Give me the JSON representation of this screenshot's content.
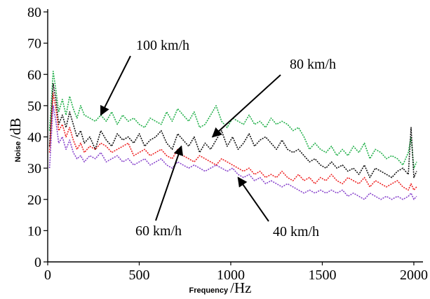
{
  "chart_data": {
    "type": "line",
    "title": "",
    "xlabel_small": "Frequency",
    "xlabel_unit": "/Hz",
    "ylabel_small": "Noise",
    "ylabel_unit": "/dB",
    "xlim": [
      0,
      2050
    ],
    "ylim": [
      0,
      80
    ],
    "xticks": [
      0,
      500,
      1000,
      1500,
      2000
    ],
    "yticks": [
      0,
      10,
      20,
      30,
      40,
      50,
      60,
      70,
      80
    ],
    "grid": false,
    "series": [
      {
        "name": "100 km/h",
        "color": "#22b04a",
        "x": [
          10,
          30,
          45,
          60,
          80,
          100,
          120,
          140,
          160,
          180,
          200,
          230,
          260,
          290,
          320,
          350,
          380,
          410,
          440,
          470,
          500,
          530,
          560,
          590,
          620,
          650,
          680,
          710,
          740,
          770,
          800,
          830,
          860,
          890,
          920,
          950,
          980,
          1010,
          1040,
          1070,
          1100,
          1130,
          1160,
          1190,
          1220,
          1250,
          1280,
          1310,
          1340,
          1370,
          1400,
          1430,
          1460,
          1490,
          1520,
          1550,
          1580,
          1610,
          1640,
          1670,
          1700,
          1730,
          1760,
          1790,
          1820,
          1850,
          1880,
          1910,
          1940,
          1970,
          1985,
          2000,
          2015
        ],
        "y": [
          42,
          61,
          55,
          48,
          52,
          47,
          53,
          49,
          46,
          50,
          47,
          46,
          45,
          47,
          45,
          48,
          44,
          47,
          45,
          46,
          44,
          43,
          46,
          45,
          44,
          48,
          45,
          49,
          47,
          45,
          48,
          43,
          44,
          47,
          50,
          45,
          43,
          46,
          45,
          44,
          47,
          44,
          45,
          43,
          46,
          44,
          45,
          44,
          42,
          43,
          40,
          36,
          38,
          36,
          35,
          37,
          34,
          36,
          34,
          37,
          35,
          38,
          33,
          36,
          35,
          33,
          34,
          33,
          31,
          35,
          40,
          30,
          32
        ]
      },
      {
        "name": "80 km/h",
        "color": "#111111",
        "x": [
          10,
          30,
          45,
          60,
          80,
          100,
          120,
          140,
          160,
          180,
          200,
          230,
          260,
          290,
          320,
          350,
          380,
          410,
          440,
          470,
          500,
          530,
          560,
          590,
          620,
          650,
          680,
          710,
          740,
          770,
          800,
          830,
          860,
          890,
          920,
          950,
          980,
          1010,
          1040,
          1070,
          1100,
          1130,
          1160,
          1190,
          1220,
          1250,
          1280,
          1310,
          1340,
          1370,
          1400,
          1430,
          1460,
          1490,
          1520,
          1550,
          1580,
          1610,
          1640,
          1670,
          1700,
          1730,
          1760,
          1790,
          1820,
          1850,
          1880,
          1910,
          1940,
          1970,
          1985,
          2000,
          2015
        ],
        "y": [
          37,
          57,
          52,
          44,
          47,
          43,
          48,
          44,
          40,
          42,
          38,
          40,
          36,
          42,
          39,
          37,
          41,
          39,
          40,
          38,
          41,
          37,
          39,
          40,
          42,
          38,
          36,
          41,
          39,
          37,
          40,
          35,
          38,
          36,
          39,
          42,
          37,
          40,
          36,
          38,
          41,
          37,
          39,
          40,
          38,
          36,
          39,
          36,
          35,
          36,
          34,
          32,
          33,
          31,
          30,
          32,
          30,
          31,
          29,
          30,
          28,
          31,
          27,
          30,
          29,
          28,
          27,
          29,
          30,
          28,
          43,
          27,
          29
        ]
      },
      {
        "name": "60 km/h",
        "color": "#ee2222",
        "x": [
          10,
          30,
          45,
          60,
          80,
          100,
          120,
          140,
          160,
          180,
          200,
          230,
          260,
          290,
          320,
          350,
          380,
          410,
          440,
          470,
          500,
          530,
          560,
          590,
          620,
          650,
          680,
          710,
          740,
          770,
          800,
          830,
          860,
          890,
          920,
          950,
          980,
          1010,
          1040,
          1070,
          1100,
          1130,
          1160,
          1190,
          1220,
          1250,
          1280,
          1310,
          1340,
          1370,
          1400,
          1430,
          1460,
          1490,
          1520,
          1550,
          1580,
          1610,
          1640,
          1670,
          1700,
          1730,
          1760,
          1790,
          1820,
          1850,
          1880,
          1910,
          1940,
          1970,
          1985,
          2000,
          2015
        ],
        "y": [
          35,
          54,
          49,
          42,
          44,
          40,
          43,
          39,
          36,
          38,
          35,
          37,
          36,
          38,
          37,
          35,
          36,
          37,
          38,
          34,
          35,
          36,
          34,
          35,
          36,
          34,
          33,
          36,
          34,
          33,
          32,
          34,
          33,
          32,
          31,
          33,
          32,
          31,
          30,
          29,
          30,
          28,
          29,
          27,
          28,
          27,
          29,
          27,
          26,
          28,
          26,
          27,
          25,
          27,
          26,
          28,
          26,
          25,
          27,
          26,
          25,
          27,
          24,
          26,
          25,
          24,
          25,
          26,
          24,
          23,
          25,
          23,
          24
        ]
      },
      {
        "name": "40 km/h",
        "color": "#8844cc",
        "x": [
          10,
          30,
          45,
          60,
          80,
          100,
          120,
          140,
          160,
          180,
          200,
          230,
          260,
          290,
          320,
          350,
          380,
          410,
          440,
          470,
          500,
          530,
          560,
          590,
          620,
          650,
          680,
          710,
          740,
          770,
          800,
          830,
          860,
          890,
          920,
          950,
          980,
          1010,
          1040,
          1070,
          1100,
          1130,
          1160,
          1190,
          1220,
          1250,
          1280,
          1310,
          1340,
          1370,
          1400,
          1430,
          1460,
          1490,
          1520,
          1550,
          1580,
          1610,
          1640,
          1670,
          1700,
          1730,
          1760,
          1790,
          1820,
          1850,
          1880,
          1910,
          1940,
          1970,
          1985,
          2000,
          2015
        ],
        "y": [
          30,
          50,
          45,
          38,
          40,
          36,
          39,
          35,
          33,
          34,
          32,
          34,
          33,
          35,
          32,
          33,
          34,
          32,
          33,
          31,
          32,
          33,
          31,
          32,
          33,
          31,
          30,
          32,
          31,
          30,
          31,
          30,
          29,
          30,
          31,
          30,
          29,
          30,
          28,
          27,
          28,
          26,
          27,
          25,
          26,
          25,
          24,
          25,
          24,
          23,
          22,
          23,
          22,
          23,
          22,
          23,
          22,
          23,
          21,
          22,
          21,
          20,
          22,
          21,
          20,
          21,
          20,
          21,
          20,
          21,
          22,
          20,
          21
        ]
      }
    ],
    "annotations": [
      {
        "text": "100 km/h",
        "series": "100 km/h",
        "target_x": 290,
        "target_y": 47
      },
      {
        "text": "80 km/h",
        "series": "80 km/h",
        "target_x": 900,
        "target_y": 40
      },
      {
        "text": "60 km/h",
        "series": "60 km/h",
        "target_x": 730,
        "target_y": 37
      },
      {
        "text": "40 km/h",
        "series": "40 km/h",
        "target_x": 1040,
        "target_y": 27
      }
    ]
  }
}
